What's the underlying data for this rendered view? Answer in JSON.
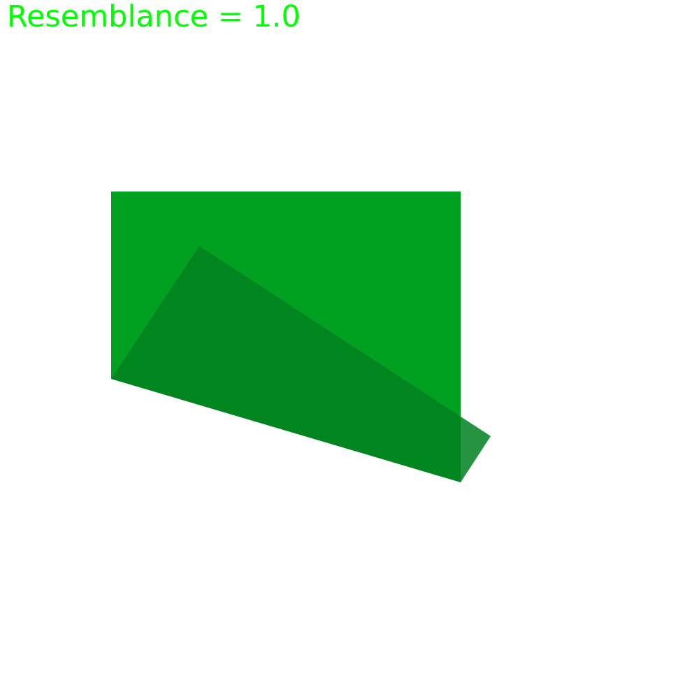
{
  "header": {
    "resemblance_text": "Resemblance = 1.0",
    "text_color": "#00ff00"
  },
  "shapes": {
    "rectangle": {
      "name": "rectangle",
      "fill_color": "#00a020"
    },
    "quadrilateral": {
      "name": "quadrilateral",
      "fill_color": "#008020",
      "opacity": 0.85
    }
  }
}
